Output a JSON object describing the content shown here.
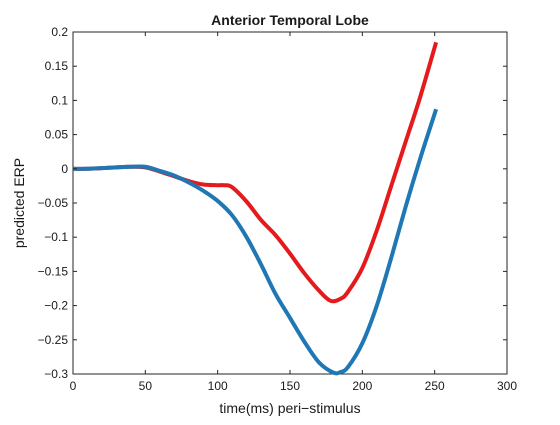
{
  "chart_data": {
    "type": "line",
    "title": "Anterior Temporal Lobe",
    "xlabel": "time(ms) peri−stimulus",
    "ylabel": "predicted ERP",
    "xlim": [
      0,
      300
    ],
    "ylim": [
      -0.3,
      0.2
    ],
    "xticks": [
      0,
      50,
      100,
      150,
      200,
      250,
      300
    ],
    "yticks": [
      0.2,
      0.15,
      0.1,
      0.05,
      0,
      -0.05,
      -0.1,
      -0.15,
      -0.2,
      -0.25,
      -0.3
    ],
    "xtick_labels": [
      "0",
      "50",
      "100",
      "150",
      "200",
      "250",
      "300"
    ],
    "ytick_labels": [
      "0.2",
      "0.15",
      "0.1",
      "0.05",
      "0",
      "−0.05",
      "−0.1",
      "−0.15",
      "−0.2",
      "−0.25",
      "−0.3"
    ],
    "grid": false,
    "series": [
      {
        "color": "#e41a1c",
        "x": [
          0,
          10,
          20,
          30,
          40,
          50,
          60,
          70,
          80,
          90,
          100,
          105,
          110,
          120,
          130,
          140,
          150,
          160,
          170,
          178,
          185,
          190,
          200,
          210,
          220,
          230,
          240,
          251
        ],
        "y": [
          0,
          0,
          0.001,
          0.002,
          0.003,
          0.002,
          -0.004,
          -0.011,
          -0.018,
          -0.023,
          -0.024,
          -0.024,
          -0.027,
          -0.048,
          -0.075,
          -0.097,
          -0.124,
          -0.153,
          -0.178,
          -0.193,
          -0.19,
          -0.18,
          -0.145,
          -0.09,
          -0.025,
          0.04,
          0.105,
          0.185
        ]
      },
      {
        "color": "#1f77b4",
        "x": [
          0,
          10,
          20,
          30,
          40,
          50,
          60,
          70,
          80,
          90,
          100,
          110,
          120,
          130,
          140,
          150,
          160,
          170,
          180,
          185,
          190,
          200,
          210,
          220,
          230,
          240,
          251
        ],
        "y": [
          0,
          0,
          0.001,
          0.002,
          0.003,
          0.003,
          -0.003,
          -0.01,
          -0.02,
          -0.032,
          -0.047,
          -0.068,
          -0.1,
          -0.14,
          -0.183,
          -0.218,
          -0.253,
          -0.283,
          -0.298,
          -0.297,
          -0.29,
          -0.255,
          -0.2,
          -0.13,
          -0.055,
          0.015,
          0.087
        ]
      }
    ]
  }
}
